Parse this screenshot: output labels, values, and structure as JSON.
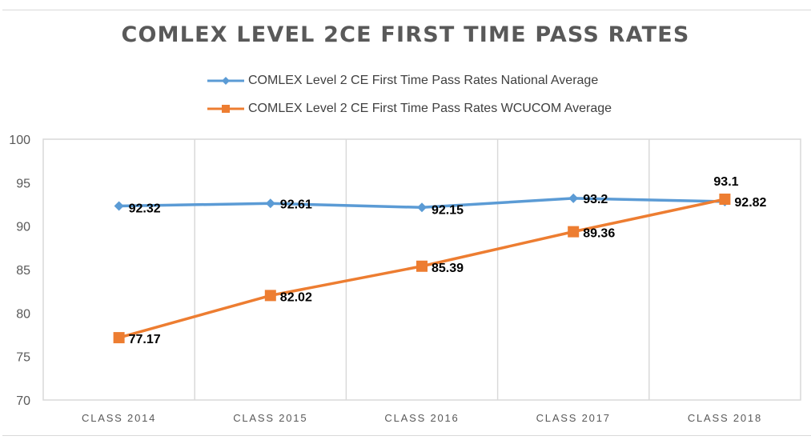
{
  "chart_data": {
    "type": "line",
    "title": "COMLEX LEVEL 2CE FIRST TIME PASS RATES",
    "xlabel": "",
    "ylabel": "",
    "categories": [
      "CLASS 2014",
      "CLASS 2015",
      "CLASS 2016",
      "CLASS 2017",
      "CLASS 2018"
    ],
    "ylim": [
      70,
      100
    ],
    "yticks": [
      70,
      75,
      80,
      85,
      90,
      95,
      100
    ],
    "grid": "vertical category separators",
    "legend_position": "top",
    "series": [
      {
        "name": "COMLEX Level 2 CE First Time Pass Rates National Average",
        "color": "#5B9BD5",
        "marker": "diamond",
        "values": [
          92.32,
          92.61,
          92.15,
          93.2,
          92.82
        ],
        "labels": [
          "92.32",
          "92.61",
          "92.15",
          "93.2",
          "92.82"
        ]
      },
      {
        "name": "COMLEX Level 2 CE First Time Pass Rates WCUCOM Average",
        "color": "#ED7D31",
        "marker": "square",
        "values": [
          77.17,
          82.02,
          85.39,
          89.36,
          93.1
        ],
        "labels": [
          "77.17",
          "82.02",
          "85.39",
          "89.36",
          "93.1"
        ]
      }
    ]
  }
}
